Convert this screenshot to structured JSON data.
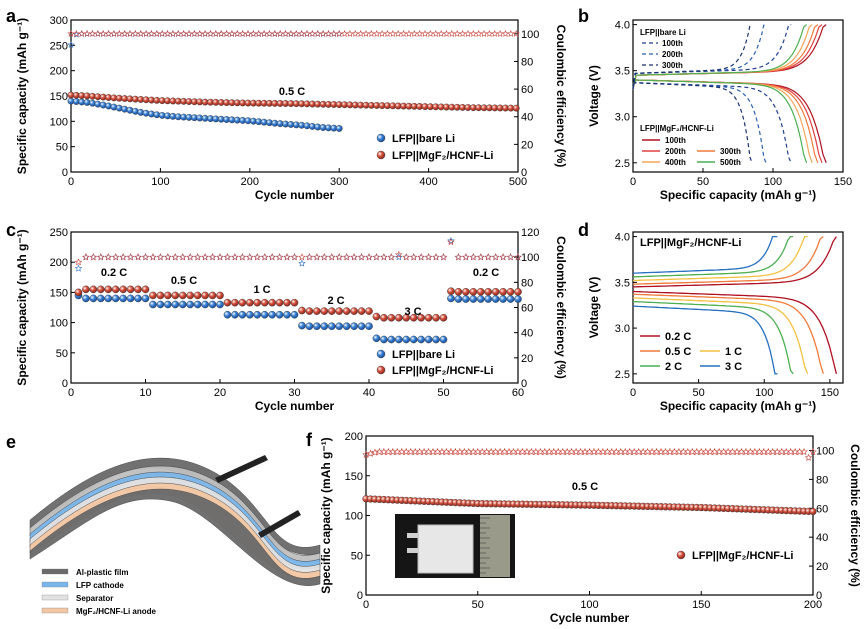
{
  "panels": {
    "a": {
      "label": "a",
      "type": "scatter",
      "xlabel": "Cycle number",
      "ylabel": "Specific capacity (mAh g⁻¹)",
      "y2label": "Coulombic efficiency (%)",
      "xlim": [
        0,
        500
      ],
      "ylim": [
        0,
        300
      ],
      "y2lim": [
        0,
        110
      ],
      "xticks": [
        "0",
        "100",
        "200",
        "300",
        "400",
        "500"
      ],
      "yticks": [
        "0",
        "50",
        "100",
        "150",
        "200",
        "250",
        "300"
      ],
      "y2ticks": [
        "0",
        "20",
        "40",
        "60",
        "80",
        "100"
      ],
      "annotation": "0.5 C",
      "series": [
        {
          "name": "LFP||bare Li",
          "color": "#2b6fc9",
          "capacity": [
            [
              0,
              140
            ],
            [
              20,
              137
            ],
            [
              40,
              131
            ],
            [
              60,
              124
            ],
            [
              80,
              117
            ],
            [
              100,
              112
            ],
            [
              120,
              109
            ],
            [
              150,
              106
            ],
            [
              180,
              103
            ],
            [
              200,
              101
            ],
            [
              230,
              96
            ],
            [
              260,
              92
            ],
            [
              280,
              88
            ],
            [
              300,
              86
            ]
          ],
          "ce": [
            [
              0,
              92
            ],
            [
              2,
              99
            ],
            [
              10,
              100
            ],
            [
              300,
              100
            ]
          ]
        },
        {
          "name": "LFP||MgF₂/HCNF-Li",
          "color": "#c8423a",
          "capacity": [
            [
              0,
              152
            ],
            [
              20,
              150
            ],
            [
              50,
              146
            ],
            [
              100,
              141
            ],
            [
              150,
              138
            ],
            [
              200,
              136
            ],
            [
              250,
              135
            ],
            [
              300,
              133
            ],
            [
              350,
              131
            ],
            [
              400,
              129
            ],
            [
              450,
              127
            ],
            [
              500,
              126
            ]
          ],
          "ce": [
            [
              0,
              100
            ],
            [
              500,
              100
            ]
          ]
        }
      ]
    },
    "b": {
      "label": "b",
      "type": "line",
      "xlabel": "Specific capacity (mAh g⁻¹)",
      "ylabel": "Voltage (V)",
      "xlim": [
        0,
        150
      ],
      "ylim": [
        2.4,
        4.05
      ],
      "xticks": [
        "0",
        "50",
        "100",
        "150"
      ],
      "yticks": [
        "2.5",
        "3.0",
        "3.5",
        "4.0"
      ],
      "group1_title": "LFP||bare Li",
      "group2_title": "LFP||MgF₂/HCNF-Li",
      "dashed": [
        {
          "name": "100th",
          "color": "#1f3f8f",
          "cap": 113
        },
        {
          "name": "200th",
          "color": "#2a5fb0",
          "cap": 95
        },
        {
          "name": "300th",
          "color": "#1a3270",
          "cap": 85
        }
      ],
      "solid": [
        {
          "name": "100th",
          "color": "#b01020",
          "cap": 138
        },
        {
          "name": "200th",
          "color": "#e04040",
          "cap": 135
        },
        {
          "name": "300th",
          "color": "#f07a3a",
          "cap": 132
        },
        {
          "name": "400th",
          "color": "#f3a55a",
          "cap": 128
        },
        {
          "name": "500th",
          "color": "#4caf50",
          "cap": 124
        }
      ]
    },
    "c": {
      "label": "c",
      "type": "scatter",
      "xlabel": "Cycle number",
      "ylabel": "Specific capacity (mAh g⁻¹)",
      "y2label": "Coulombic efficiency (%)",
      "xlim": [
        0,
        60
      ],
      "ylim": [
        0,
        250
      ],
      "y2lim": [
        0,
        120
      ],
      "xticks": [
        "0",
        "10",
        "20",
        "30",
        "40",
        "50",
        "60"
      ],
      "yticks": [
        "0",
        "50",
        "100",
        "150",
        "200",
        "250"
      ],
      "y2ticks": [
        "0",
        "20",
        "40",
        "60",
        "80",
        "100",
        "120"
      ],
      "rate_labels": [
        "0.2 C",
        "0.5 C",
        "1 C",
        "2 C",
        "3 C",
        "0.2 C"
      ],
      "series": [
        {
          "name": "LFP||bare Li",
          "color": "#2b6fc9",
          "steps": [
            145,
            140,
            140,
            140,
            140,
            140,
            140,
            140,
            140,
            140,
            130,
            130,
            130,
            130,
            130,
            130,
            130,
            130,
            130,
            130,
            113,
            113,
            113,
            113,
            113,
            113,
            113,
            113,
            113,
            113,
            95,
            94,
            94,
            94,
            94,
            94,
            94,
            94,
            94,
            94,
            74,
            72,
            72,
            72,
            72,
            72,
            72,
            72,
            72,
            72,
            140,
            139,
            139,
            139,
            139,
            139,
            139,
            139,
            139,
            139
          ]
        },
        {
          "name": "LFP||MgF₂/HCNF-Li",
          "color": "#c8423a",
          "steps": [
            150,
            155,
            155,
            155,
            155,
            155,
            155,
            155,
            155,
            155,
            145,
            145,
            145,
            145,
            145,
            145,
            145,
            145,
            145,
            145,
            133,
            133,
            133,
            133,
            133,
            133,
            133,
            133,
            133,
            133,
            120,
            119,
            119,
            119,
            119,
            119,
            119,
            119,
            119,
            119,
            110,
            108,
            108,
            108,
            108,
            108,
            108,
            108,
            108,
            108,
            152,
            151,
            151,
            151,
            151,
            151,
            151,
            151,
            151,
            151
          ]
        }
      ]
    },
    "d": {
      "label": "d",
      "type": "line",
      "title": "LFP||MgF₂/HCNF-Li",
      "xlabel": "Specific capacity (mAh g⁻¹)",
      "ylabel": "Voltage (V)",
      "xlim": [
        0,
        160
      ],
      "ylim": [
        2.4,
        4.05
      ],
      "xticks": [
        "0",
        "50",
        "100",
        "150"
      ],
      "yticks": [
        "2.5",
        "3.0",
        "3.5",
        "4.0"
      ],
      "curves": [
        {
          "name": "0.2 C",
          "color": "#b01020",
          "cap": 155,
          "vc": 3.45,
          "vd": 3.4
        },
        {
          "name": "0.5 C",
          "color": "#f07a3a",
          "cap": 145,
          "vc": 3.48,
          "vd": 3.37
        },
        {
          "name": "1 C",
          "color": "#f3c040",
          "cap": 133,
          "vc": 3.52,
          "vd": 3.33
        },
        {
          "name": "2 C",
          "color": "#4caf50",
          "cap": 122,
          "vc": 3.56,
          "vd": 3.29
        },
        {
          "name": "3 C",
          "color": "#2570c0",
          "cap": 110,
          "vc": 3.6,
          "vd": 3.24
        }
      ]
    },
    "e": {
      "label": "e",
      "legend": [
        {
          "name": "Al-plastic film",
          "color": "#6a6a6a"
        },
        {
          "name": "LFP cathode",
          "color": "#7ab6ea"
        },
        {
          "name": "Separator",
          "color": "#e2e2e2"
        },
        {
          "name": "MgF₂/HCNF-Li anode",
          "color": "#f3c7a3"
        }
      ]
    },
    "f": {
      "label": "f",
      "type": "scatter",
      "xlabel": "Cycle number",
      "ylabel": "Specific capacity (mAh g⁻¹)",
      "y2label": "Coulombic efficiency (%)",
      "xlim": [
        0,
        200
      ],
      "ylim": [
        0,
        200
      ],
      "y2lim": [
        0,
        110
      ],
      "xticks": [
        "0",
        "50",
        "100",
        "150",
        "200"
      ],
      "yticks": [
        "0",
        "50",
        "100",
        "150",
        "200"
      ],
      "y2ticks": [
        "0",
        "20",
        "40",
        "60",
        "80",
        "100"
      ],
      "annotation": "0.5 C",
      "series": [
        {
          "name": "LFP||MgF₂/HCNF-Li",
          "color": "#c8423a",
          "capacity": [
            [
              0,
              121
            ],
            [
              50,
              115
            ],
            [
              100,
              113
            ],
            [
              150,
              110
            ],
            [
              200,
              105
            ]
          ],
          "ce": [
            [
              0,
              97
            ],
            [
              5,
              99
            ],
            [
              200,
              99
            ]
          ]
        }
      ]
    }
  }
}
